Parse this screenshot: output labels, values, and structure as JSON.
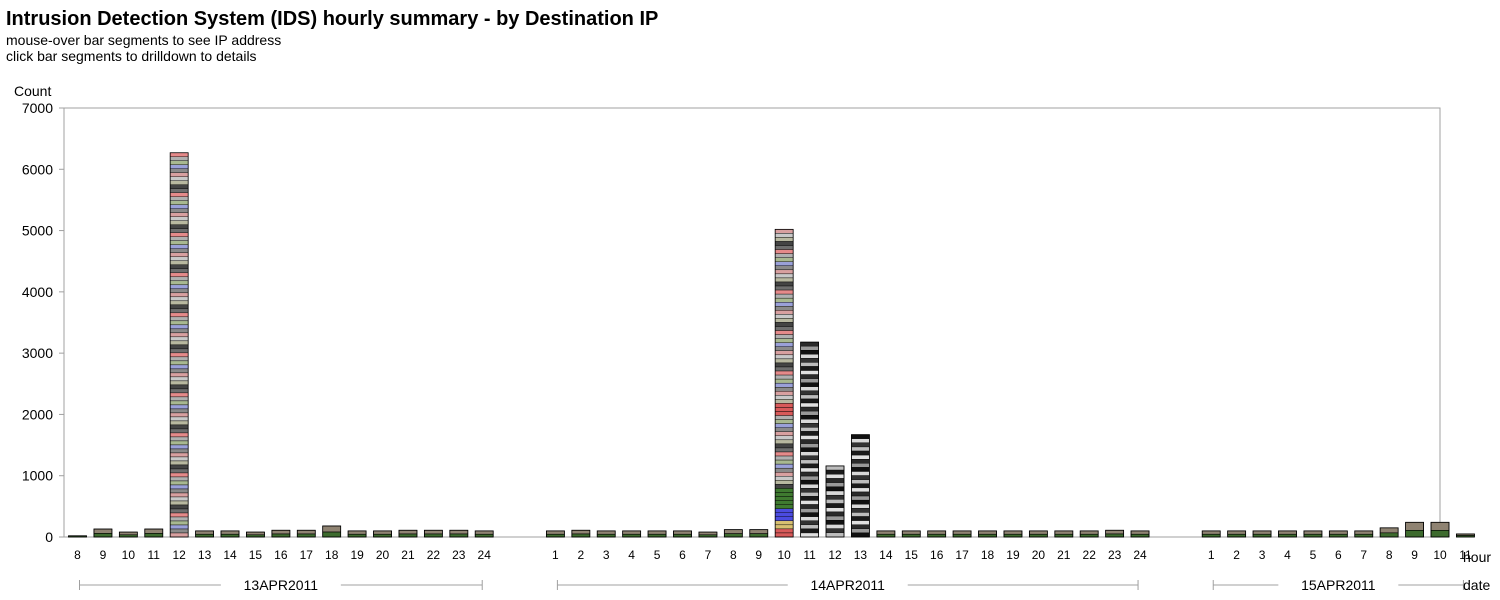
{
  "header": {
    "title": "Intrusion Detection System (IDS) hourly summary - by Destination IP",
    "subtitle_lines": [
      "mouse-over bar segments to see IP address",
      "click bar segments to drilldown to details"
    ]
  },
  "chart_data": {
    "type": "bar",
    "stacked": true,
    "ylabel": "Count",
    "ylim": [
      0,
      7000
    ],
    "yticks": [
      0,
      1000,
      2000,
      3000,
      4000,
      5000,
      6000,
      7000
    ],
    "xlabel_inner": "hour",
    "xlabel_outer": "date",
    "grid": false,
    "legend": "none",
    "groups": [
      {
        "date": "13APR2011",
        "hours": [
          "8",
          "9",
          "10",
          "11",
          "12",
          "13",
          "14",
          "15",
          "16",
          "17",
          "18",
          "19",
          "20",
          "21",
          "22",
          "23",
          "24"
        ],
        "values": [
          20,
          130,
          80,
          130,
          6270,
          100,
          100,
          80,
          110,
          110,
          180,
          100,
          100,
          110,
          110,
          110,
          100
        ]
      },
      {
        "date": "14APR2011",
        "hours": [
          "1",
          "2",
          "3",
          "4",
          "5",
          "6",
          "7",
          "8",
          "9",
          "10",
          "11",
          "12",
          "13",
          "14",
          "15",
          "16",
          "17",
          "18",
          "19",
          "20",
          "21",
          "22",
          "23",
          "24"
        ],
        "values": [
          100,
          110,
          100,
          100,
          100,
          100,
          80,
          120,
          120,
          5020,
          3180,
          1160,
          1670,
          100,
          100,
          100,
          100,
          100,
          100,
          100,
          100,
          100,
          110,
          100
        ]
      },
      {
        "date": "15APR2011",
        "hours": [
          "1",
          "2",
          "3",
          "4",
          "5",
          "6",
          "7",
          "8",
          "9",
          "10",
          "11"
        ],
        "values": [
          100,
          100,
          100,
          100,
          100,
          100,
          100,
          150,
          240,
          240,
          50
        ]
      }
    ]
  }
}
